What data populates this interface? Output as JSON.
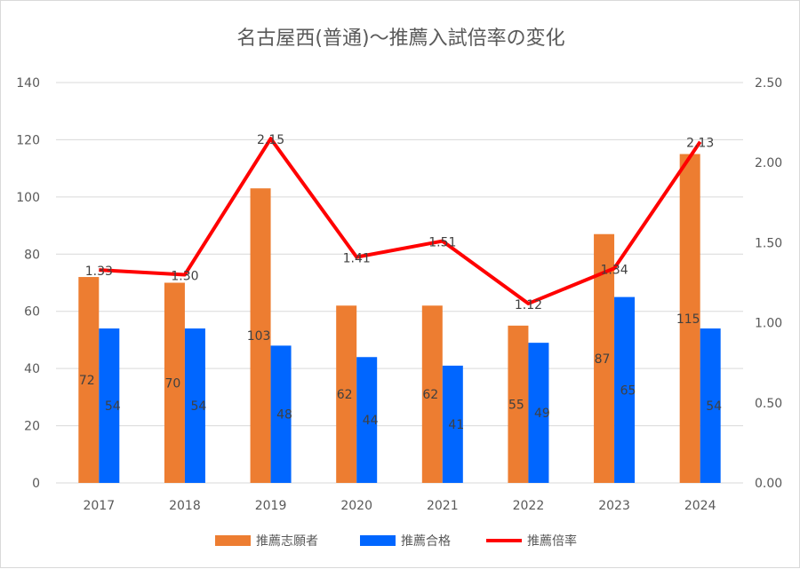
{
  "chart_data": {
    "type": "bar",
    "title": "名古屋西(普通)～推薦入試倍率の変化",
    "categories": [
      "2017",
      "2018",
      "2019",
      "2020",
      "2021",
      "2022",
      "2023",
      "2024"
    ],
    "series": [
      {
        "name": "推薦志願者",
        "kind": "bar",
        "axis": "left",
        "color": "#ED7D31",
        "values": [
          72,
          70,
          103,
          62,
          62,
          55,
          87,
          115
        ]
      },
      {
        "name": "推薦合格",
        "kind": "bar",
        "axis": "left",
        "color": "#0066FF",
        "values": [
          54,
          54,
          48,
          44,
          41,
          49,
          65,
          54
        ]
      },
      {
        "name": "推薦倍率",
        "kind": "line",
        "axis": "right",
        "color": "#FF0000",
        "values": [
          1.33,
          1.3,
          2.15,
          1.41,
          1.51,
          1.12,
          1.34,
          2.13
        ],
        "labels": [
          "1.33",
          "1.30",
          "2.15",
          "1.41",
          "1.51",
          "1.12",
          "1.34",
          "2.13"
        ]
      }
    ],
    "y_left": {
      "min": 0,
      "max": 140,
      "ticks": [
        "0",
        "20",
        "40",
        "60",
        "80",
        "100",
        "120",
        "140"
      ]
    },
    "y_right": {
      "min": 0,
      "max": 2.5,
      "ticks": [
        "0.00",
        "0.50",
        "1.00",
        "1.50",
        "2.00",
        "2.50"
      ]
    },
    "grid": true,
    "legend_position": "bottom"
  }
}
